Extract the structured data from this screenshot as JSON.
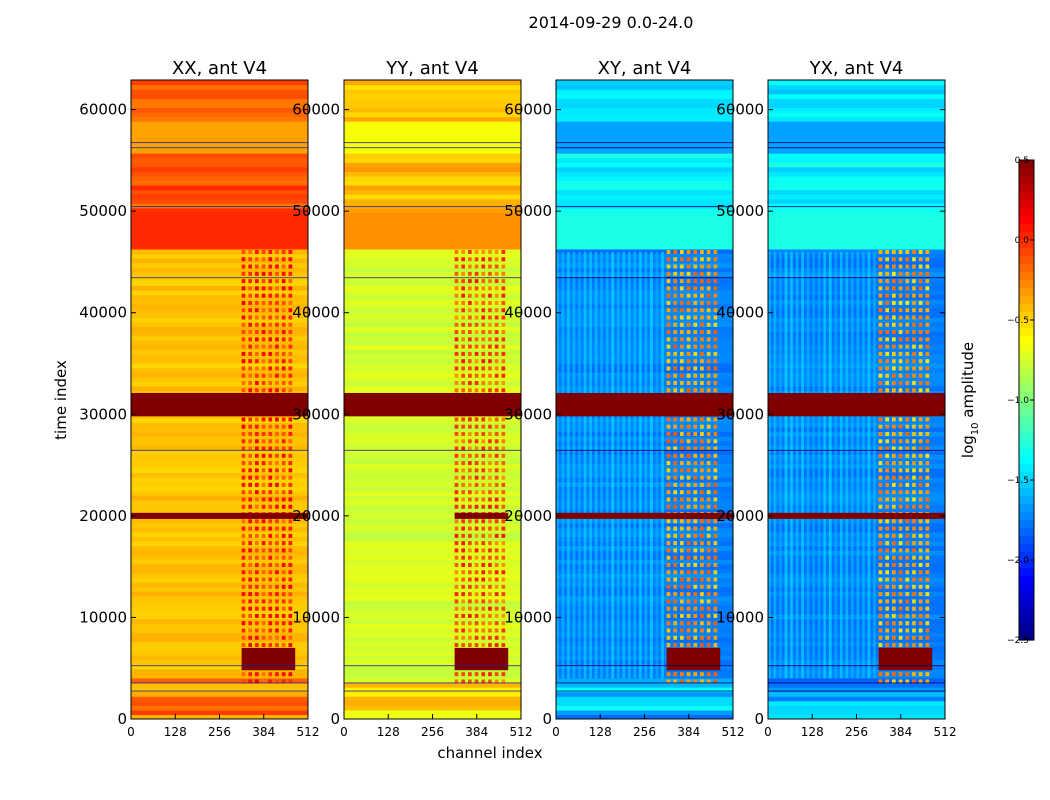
{
  "chart_data": {
    "type": "heatmap",
    "title": "2014-09-29 0.0-24.0",
    "xlabel": "channel index",
    "ylabel": "time index",
    "xlim": [
      0,
      512
    ],
    "ylim": [
      0,
      62914
    ],
    "xticks": [
      0,
      128,
      256,
      384,
      512
    ],
    "yticks": [
      0,
      10000,
      20000,
      30000,
      40000,
      50000,
      60000
    ],
    "colorbar": {
      "label": "log10 amplitude",
      "label_base": "log",
      "label_sub": "10",
      "label_rest": " amplitude",
      "range": [
        -2.5,
        0.5
      ],
      "ticks": [
        "0.5",
        "0.0",
        "−0.5",
        "−1.0",
        "−1.5",
        "−2.0",
        "−2.5"
      ],
      "colormap": "jet"
    },
    "panels": [
      {
        "title": "XX, ant V4",
        "baseline": -0.45,
        "band": 0.35
      },
      {
        "title": "YY, ant V4",
        "baseline": -0.75,
        "band": 0.55
      },
      {
        "title": "XY, ant V4",
        "baseline": -1.75,
        "band": 1.35
      },
      {
        "title": "YX, ant V4",
        "baseline": -1.75,
        "band": 1.3
      }
    ],
    "rfi_channel_range": [
      320,
      475
    ],
    "saturated_time_bands": [
      [
        29800,
        32100
      ],
      [
        19700,
        20300
      ],
      [
        4800,
        7000
      ]
    ]
  }
}
